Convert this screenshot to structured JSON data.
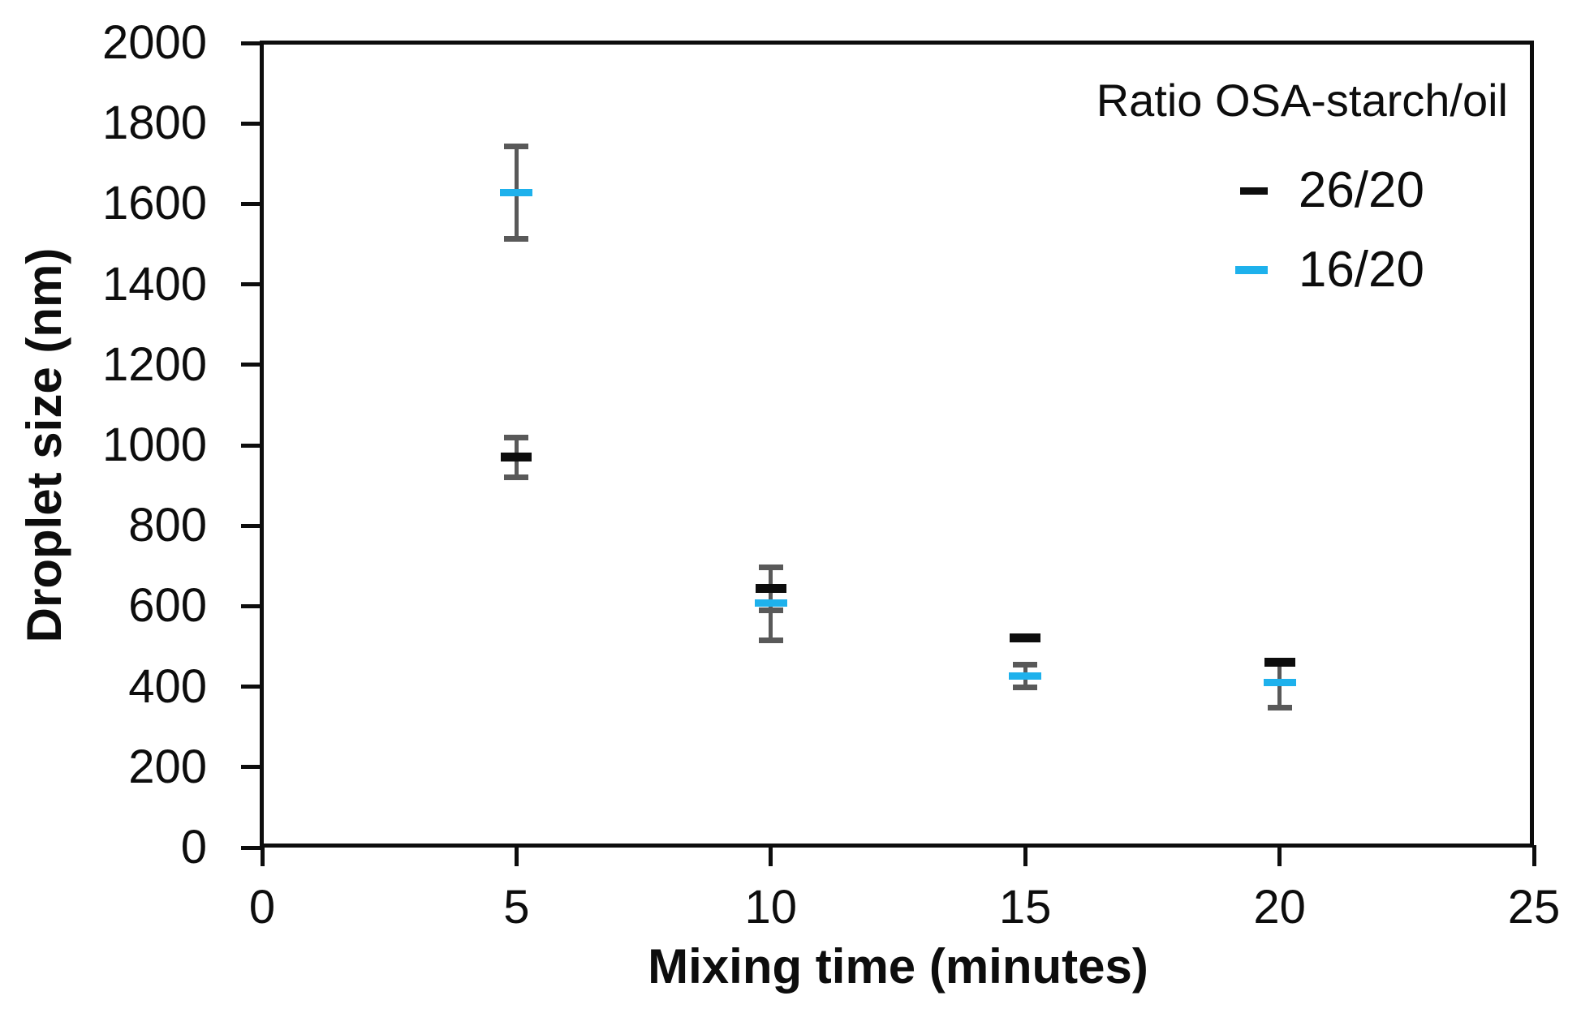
{
  "chart_data": {
    "type": "scatter",
    "xlabel": "Mixing time (minutes)",
    "ylabel": "Droplet size (nm)",
    "xlim": [
      0,
      25
    ],
    "ylim": [
      0,
      2000
    ],
    "x_ticks": [
      0,
      5,
      10,
      15,
      20,
      25
    ],
    "y_ticks": [
      0,
      200,
      400,
      600,
      800,
      1000,
      1200,
      1400,
      1600,
      1800,
      2000
    ],
    "grid": "off",
    "legend": {
      "title": "Ratio OSA-starch/oil",
      "position": "top-right-inside",
      "entries": [
        {
          "label": "26/20",
          "color": "#0d0d0d"
        },
        {
          "label": "16/20",
          "color": "#1eb1ec"
        }
      ]
    },
    "marker_style": "horizontal-dash",
    "error_bar_color": "#595959",
    "series": [
      {
        "name": "26/20",
        "color": "#0d0d0d",
        "points": [
          {
            "x": 5,
            "y": 970,
            "err_up": 50,
            "err_down": 48
          },
          {
            "x": 10,
            "y": 645,
            "err_up": 52,
            "err_down": 55
          },
          {
            "x": 15,
            "y": 522,
            "err_up": 0,
            "err_down": 0
          },
          {
            "x": 20,
            "y": 460,
            "err_up": 0,
            "err_down": 0
          }
        ]
      },
      {
        "name": "16/20",
        "color": "#1eb1ec",
        "points": [
          {
            "x": 5,
            "y": 1628,
            "err_up": 116,
            "err_down": 113
          },
          {
            "x": 10,
            "y": 608,
            "err_up": 90,
            "err_down": 92
          },
          {
            "x": 15,
            "y": 427,
            "err_up": 29,
            "err_down": 28
          },
          {
            "x": 20,
            "y": 410,
            "err_up": 50,
            "err_down": 62
          }
        ]
      }
    ]
  }
}
